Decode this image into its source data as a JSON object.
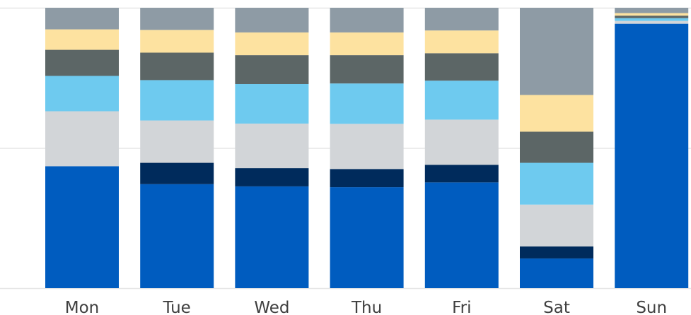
{
  "chart_data": {
    "type": "bar",
    "stacked": true,
    "normalized": true,
    "categories": [
      "Mon",
      "Tue",
      "Wed",
      "Thu",
      "Fri",
      "Sat",
      "Sun"
    ],
    "ylim": [
      0,
      100
    ],
    "grid": true,
    "series": [
      {
        "color": "#005cbf",
        "values": [
          43.5,
          37.1,
          36.3,
          36.0,
          37.7,
          10.6,
          94.3
        ]
      },
      {
        "color": "#002b5c",
        "values": [
          0.0,
          7.6,
          6.5,
          6.5,
          6.3,
          4.3,
          0.0
        ]
      },
      {
        "color": "#d2d5d8",
        "values": [
          19.6,
          15.1,
          15.9,
          16.1,
          16.1,
          14.9,
          1.0
        ]
      },
      {
        "color": "#6ecaef",
        "values": [
          12.6,
          14.4,
          14.1,
          14.4,
          13.9,
          14.9,
          1.0
        ]
      },
      {
        "color": "#5c6666",
        "values": [
          9.3,
          9.8,
          10.3,
          10.1,
          9.8,
          11.1,
          0.9
        ]
      },
      {
        "color": "#fde2a0",
        "values": [
          7.3,
          8.1,
          8.1,
          8.1,
          8.1,
          13.1,
          0.9
        ]
      },
      {
        "color": "#8e9ba5",
        "values": [
          7.7,
          7.9,
          8.8,
          8.8,
          8.1,
          31.1,
          1.9
        ]
      }
    ]
  }
}
